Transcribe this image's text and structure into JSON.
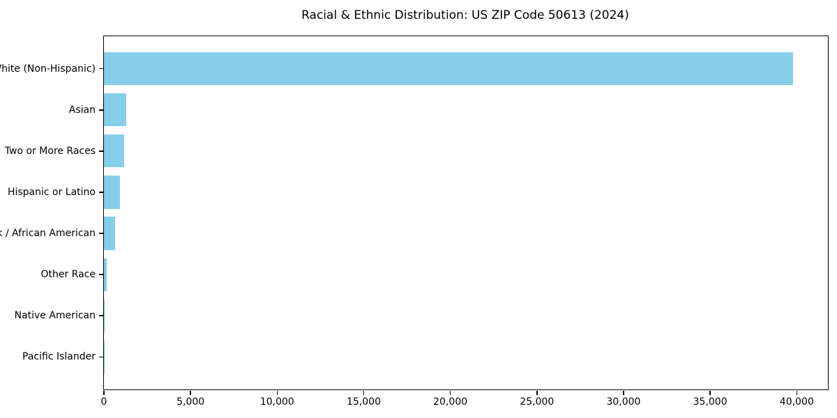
{
  "chart_data": {
    "type": "bar",
    "orientation": "horizontal",
    "title": "Racial & Ethnic Distribution: US ZIP Code 50613 (2024)",
    "categories": [
      "White (Non-Hispanic)",
      "Asian",
      "Two or More Races",
      "Hispanic or Latino",
      "Black / African American",
      "Other Race",
      "Native American",
      "Pacific Islander"
    ],
    "values": [
      39800,
      1300,
      1150,
      920,
      630,
      180,
      30,
      10
    ],
    "xlabel": "",
    "ylabel": "",
    "xlim": [
      0,
      41800
    ],
    "x_ticks": [
      0,
      5000,
      10000,
      15000,
      20000,
      25000,
      30000,
      35000,
      40000
    ],
    "x_tick_labels": [
      "0",
      "5,000",
      "10,000",
      "15,000",
      "20,000",
      "25,000",
      "30,000",
      "35,000",
      "40,000"
    ],
    "grid": false,
    "legend": "none",
    "bar_color": "#87CEEB",
    "axis_color": "#000000",
    "background_color": "#ffffff",
    "bar_height_frac": 0.8
  }
}
